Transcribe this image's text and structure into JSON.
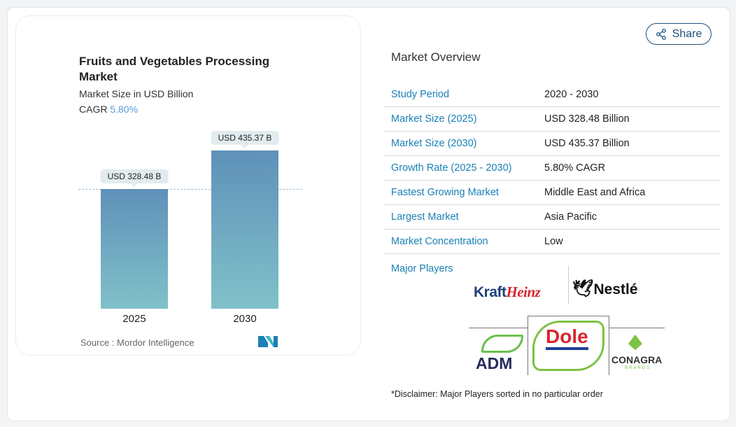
{
  "chart_card": {
    "title": "Fruits and Vegetables Processing Market",
    "subtitle": "Market Size in USD Billion",
    "cagr_label": "CAGR",
    "cagr_value": "5.80%",
    "source": "Source :  Mordor Intelligence"
  },
  "chart_data": {
    "type": "bar",
    "categories": [
      "2025",
      "2030"
    ],
    "values": [
      328.48,
      435.37
    ],
    "data_labels": [
      "USD 328.48 B",
      "USD 435.37 B"
    ],
    "title": "Fruits and Vegetables Processing Market",
    "subtitle": "Market Size in USD Billion",
    "reference_line": "dashed at 2025 value",
    "colors": {
      "bar_top": "#5f91b9",
      "bar_bottom": "#80c1c9"
    }
  },
  "share_button": {
    "label": "Share",
    "icon": "share-icon"
  },
  "overview": {
    "heading": "Market Overview",
    "rows": [
      {
        "key": "Study Period",
        "value": "2020 - 2030"
      },
      {
        "key": "Market Size (2025)",
        "value": "USD 328.48 Billion"
      },
      {
        "key": "Market Size (2030)",
        "value": "USD 435.37 Billion"
      },
      {
        "key": "Growth Rate (2025 - 2030)",
        "value": "5.80% CAGR"
      },
      {
        "key": "Fastest Growing Market",
        "value": "Middle East and Africa"
      },
      {
        "key": "Largest Market",
        "value": "Asia Pacific"
      },
      {
        "key": "Market Concentration",
        "value": "Low"
      }
    ],
    "major_players_label": "Major Players",
    "players": [
      "KraftHeinz",
      "Nestlé",
      "ADM",
      "Dole",
      "CONAGRA"
    ],
    "conagra_sub": "BRANDS",
    "disclaimer": "*Disclaimer: Major Players sorted in no particular order"
  },
  "colors": {
    "accent": "#1a7fb5",
    "cagr": "#5b9bd5",
    "share": "#1f4e79"
  }
}
